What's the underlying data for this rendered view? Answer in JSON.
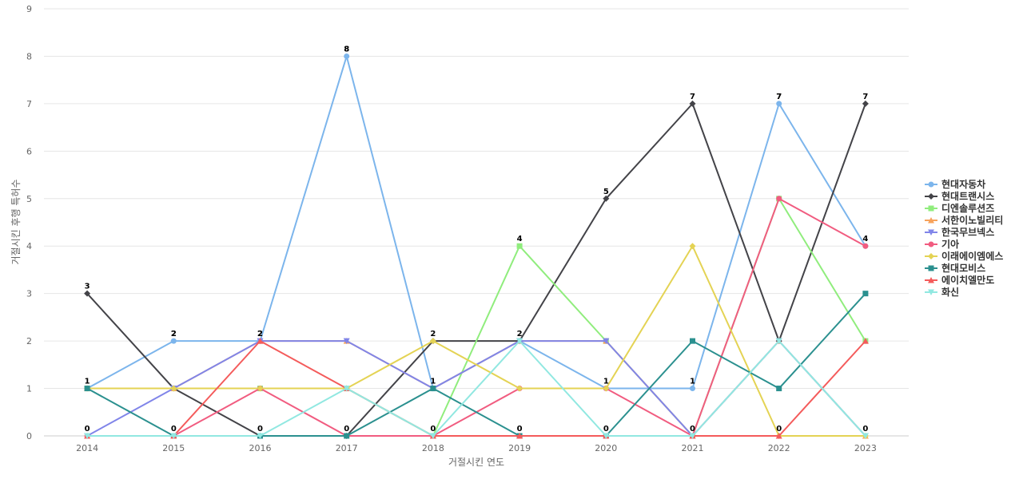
{
  "chart_data": {
    "type": "line",
    "title": "",
    "xlabel": "거절시킨 연도",
    "ylabel": "거절시킨 후행 특허수",
    "ylim": [
      0,
      9
    ],
    "y_ticks": [
      "0",
      "1",
      "2",
      "3",
      "4",
      "5",
      "6",
      "7",
      "8",
      "9"
    ],
    "categories": [
      "2014",
      "2015",
      "2016",
      "2017",
      "2018",
      "2019",
      "2020",
      "2021",
      "2022",
      "2023"
    ],
    "grid": true,
    "legend_position": "right",
    "series": [
      {
        "name": "현대자동차",
        "color": "#7cb5ec",
        "marker": "circle",
        "values": [
          1,
          2,
          2,
          8,
          1,
          2,
          1,
          1,
          7,
          4
        ]
      },
      {
        "name": "현대트랜시스",
        "color": "#434348",
        "marker": "diamond",
        "values": [
          3,
          1,
          0,
          0,
          2,
          2,
          5,
          7,
          2,
          7
        ]
      },
      {
        "name": "디엔솔루션즈",
        "color": "#90ed7d",
        "marker": "square",
        "values": [
          1,
          1,
          1,
          1,
          0,
          4,
          2,
          0,
          5,
          2
        ]
      },
      {
        "name": "서한이노빌리티",
        "color": "#f7a35c",
        "marker": "triangle",
        "values": [
          1,
          1,
          2,
          2,
          1,
          2,
          2,
          0,
          2,
          0
        ]
      },
      {
        "name": "한국무브넥스",
        "color": "#8085e9",
        "marker": "triangle-down",
        "values": [
          0,
          1,
          2,
          2,
          1,
          2,
          2,
          0,
          2,
          0
        ]
      },
      {
        "name": "기아",
        "color": "#f15c80",
        "marker": "circle",
        "values": [
          0,
          0,
          1,
          0,
          0,
          1,
          1,
          0,
          5,
          4
        ]
      },
      {
        "name": "이래에이엠에스",
        "color": "#e4d354",
        "marker": "diamond",
        "values": [
          1,
          1,
          1,
          1,
          2,
          1,
          1,
          4,
          0,
          0
        ]
      },
      {
        "name": "현대모비스",
        "color": "#2b908f",
        "marker": "square",
        "values": [
          1,
          0,
          0,
          0,
          1,
          0,
          0,
          2,
          1,
          3
        ]
      },
      {
        "name": "에이치엘만도",
        "color": "#f45b5b",
        "marker": "triangle",
        "values": [
          0,
          0,
          2,
          1,
          0,
          0,
          0,
          0,
          0,
          2
        ]
      },
      {
        "name": "화신",
        "color": "#91e8e1",
        "marker": "triangle-down",
        "values": [
          0,
          0,
          0,
          1,
          0,
          2,
          0,
          0,
          2,
          0
        ]
      }
    ],
    "data_labels": {
      "values": [
        "1",
        "2",
        "2",
        "8",
        "1",
        "2",
        "1",
        "1",
        "7",
        "4"
      ],
      "top": [
        "3",
        "2",
        "2",
        "8",
        "2",
        "4",
        "5",
        "7",
        "7",
        "7"
      ],
      "bottom": [
        "0",
        "0",
        "0",
        "0",
        "0",
        "0",
        "0",
        "0",
        "0",
        "0"
      ]
    }
  }
}
